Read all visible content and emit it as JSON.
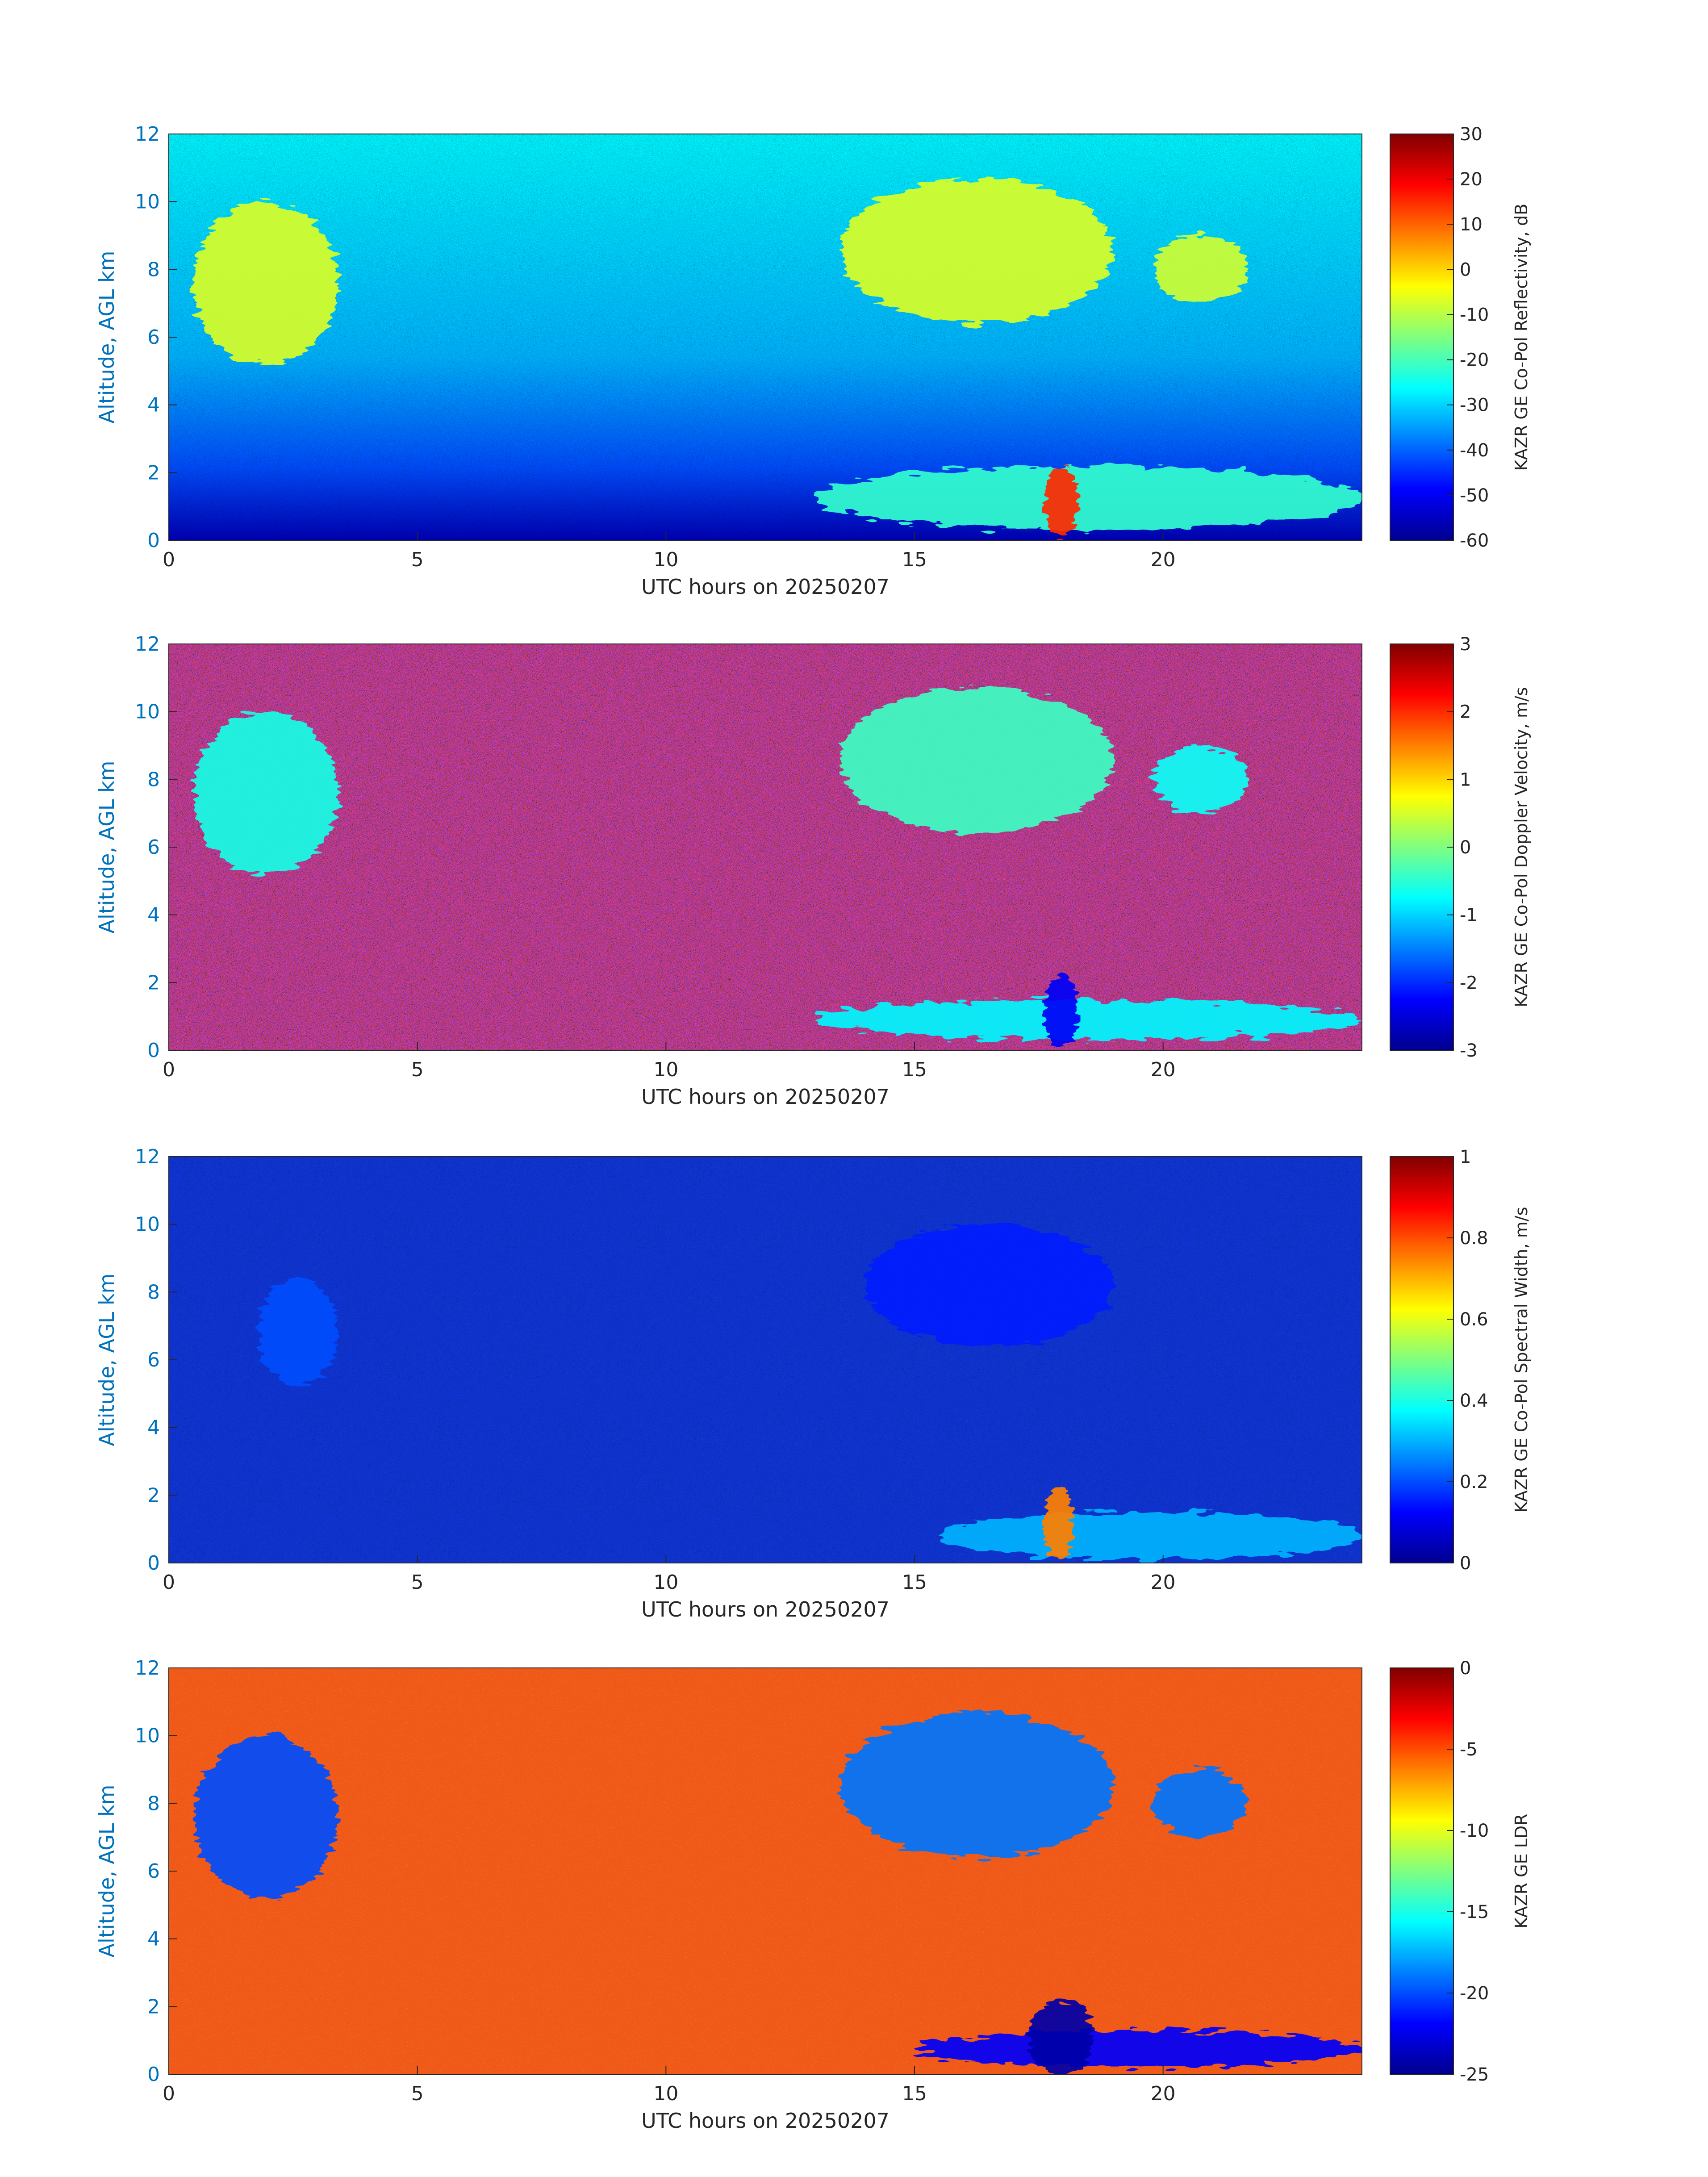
{
  "palette": {
    "background_clear_air_reflectivity": "#1de1e1",
    "background_velocity_noise": "#7a1a2a",
    "background_spectral_width": "#1036d8",
    "background_ldr": "#f05818",
    "axis_text_y": "#0072bd",
    "axis_text_x": "#262626"
  },
  "chart_data": [
    {
      "type": "heatmap",
      "variable": "reflectivity",
      "xlabel": "UTC hours on 20250207",
      "ylabel": "Altitude, AGL km",
      "xlim": [
        0,
        24
      ],
      "ylim": [
        0,
        12
      ],
      "xticks": [
        0,
        5,
        10,
        15,
        20
      ],
      "yticks": [
        0,
        2,
        4,
        6,
        8,
        10,
        12
      ],
      "colorbar": {
        "label": "KAZR GE Co-Pol Reflectivity, dB",
        "colormap": "jet",
        "range": [
          -60,
          30
        ],
        "ticks": [
          30,
          20,
          10,
          0,
          -10,
          -20,
          -30,
          -40,
          -50,
          -60
        ]
      },
      "features": [
        {
          "feature": "cirrus",
          "t_start": 0.5,
          "t_end": 3.4,
          "z_bottom": 5.2,
          "z_top": 10.0,
          "level": -7
        },
        {
          "feature": "cirrus",
          "t_start": 13.5,
          "t_end": 19.0,
          "z_bottom": 6.4,
          "z_top": 10.7,
          "level": -7
        },
        {
          "feature": "cirrus",
          "t_start": 19.8,
          "t_end": 21.7,
          "z_bottom": 7.0,
          "z_top": 9.0,
          "level": -8
        },
        {
          "feature": "boundary-layer cloud",
          "t_start": 13.0,
          "t_end": 24.0,
          "z_bottom": 0.3,
          "z_top": 2.2,
          "level": -22
        },
        {
          "feature": "precipitation core",
          "t_start": 17.6,
          "t_end": 18.3,
          "z_bottom": 0.1,
          "z_top": 2.2,
          "level": 15
        }
      ]
    },
    {
      "type": "heatmap",
      "variable": "doppler_velocity",
      "xlabel": "UTC hours on 20250207",
      "ylabel": "Altitude, AGL km",
      "xlim": [
        0,
        24
      ],
      "ylim": [
        0,
        12
      ],
      "xticks": [
        0,
        5,
        10,
        15,
        20
      ],
      "yticks": [
        0,
        2,
        4,
        6,
        8,
        10,
        12
      ],
      "colorbar": {
        "label": "KAZR GE Co-Pol Doppler Velocity, m/s",
        "colormap": "jet",
        "range": [
          -3,
          3
        ],
        "ticks": [
          3,
          2,
          1,
          0,
          -1,
          -2,
          -3
        ]
      },
      "features": [
        {
          "feature": "cirrus",
          "t_start": 0.5,
          "t_end": 3.4,
          "z_bottom": 5.2,
          "z_top": 10.0,
          "level": -0.6
        },
        {
          "feature": "cirrus",
          "t_start": 13.5,
          "t_end": 19.0,
          "z_bottom": 6.4,
          "z_top": 10.7,
          "level": -0.4
        },
        {
          "feature": "cirrus",
          "t_start": 19.8,
          "t_end": 21.7,
          "z_bottom": 7.0,
          "z_top": 9.0,
          "level": -0.7
        },
        {
          "feature": "boundary-layer cloud",
          "t_start": 13.0,
          "t_end": 24.0,
          "z_bottom": 0.3,
          "z_top": 1.5,
          "level": -0.8
        },
        {
          "feature": "precipitation core",
          "t_start": 17.6,
          "t_end": 18.3,
          "z_bottom": 0.1,
          "z_top": 2.2,
          "level": -2.3
        }
      ]
    },
    {
      "type": "heatmap",
      "variable": "spectral_width",
      "xlabel": "UTC hours on 20250207",
      "ylabel": "Altitude, AGL km",
      "xlim": [
        0,
        24
      ],
      "ylim": [
        0,
        12
      ],
      "xticks": [
        0,
        5,
        10,
        15,
        20
      ],
      "yticks": [
        0,
        2,
        4,
        6,
        8,
        10,
        12
      ],
      "colorbar": {
        "label": "KAZR GE Co-Pol Spectral Width, m/s",
        "colormap": "jet",
        "range": [
          0,
          1
        ],
        "ticks": [
          1,
          0.8,
          0.6,
          0.4,
          0.2,
          0
        ]
      },
      "features": [
        {
          "feature": "cirrus",
          "t_start": 1.8,
          "t_end": 3.4,
          "z_bottom": 5.2,
          "z_top": 8.4,
          "level": 0.2
        },
        {
          "feature": "cirrus",
          "t_start": 14.0,
          "t_end": 19.0,
          "z_bottom": 6.4,
          "z_top": 10.0,
          "level": 0.15
        },
        {
          "feature": "boundary-layer cloud",
          "t_start": 15.5,
          "t_end": 24.0,
          "z_bottom": 0.1,
          "z_top": 1.5,
          "level": 0.3
        },
        {
          "feature": "precipitation core",
          "t_start": 17.6,
          "t_end": 18.2,
          "z_bottom": 0.1,
          "z_top": 2.2,
          "level": 0.75
        }
      ]
    },
    {
      "type": "heatmap",
      "variable": "ldr",
      "xlabel": "UTC hours on 20250207",
      "ylabel": "Altitude, AGL km",
      "xlim": [
        0,
        24
      ],
      "ylim": [
        0,
        12
      ],
      "xticks": [
        0,
        5,
        10,
        15,
        20
      ],
      "yticks": [
        0,
        2,
        4,
        6,
        8,
        10,
        12
      ],
      "colorbar": {
        "label": "KAZR GE LDR",
        "colormap": "jet",
        "range": [
          -25,
          0
        ],
        "ticks": [
          0,
          -5,
          -10,
          -15,
          -20,
          -25
        ]
      },
      "features": [
        {
          "feature": "cirrus",
          "t_start": 0.5,
          "t_end": 3.4,
          "z_bottom": 5.2,
          "z_top": 10.0,
          "level": -20
        },
        {
          "feature": "cirrus",
          "t_start": 13.5,
          "t_end": 19.0,
          "z_bottom": 6.4,
          "z_top": 10.7,
          "level": -19
        },
        {
          "feature": "cirrus",
          "t_start": 19.8,
          "t_end": 21.7,
          "z_bottom": 7.0,
          "z_top": 9.0,
          "level": -19
        },
        {
          "feature": "boundary-layer cloud",
          "t_start": 15.0,
          "t_end": 24.0,
          "z_bottom": 0.2,
          "z_top": 1.3,
          "level": -22
        },
        {
          "feature": "precipitation core",
          "t_start": 17.3,
          "t_end": 18.6,
          "z_bottom": 0.0,
          "z_top": 2.2,
          "level": -24
        }
      ]
    }
  ]
}
